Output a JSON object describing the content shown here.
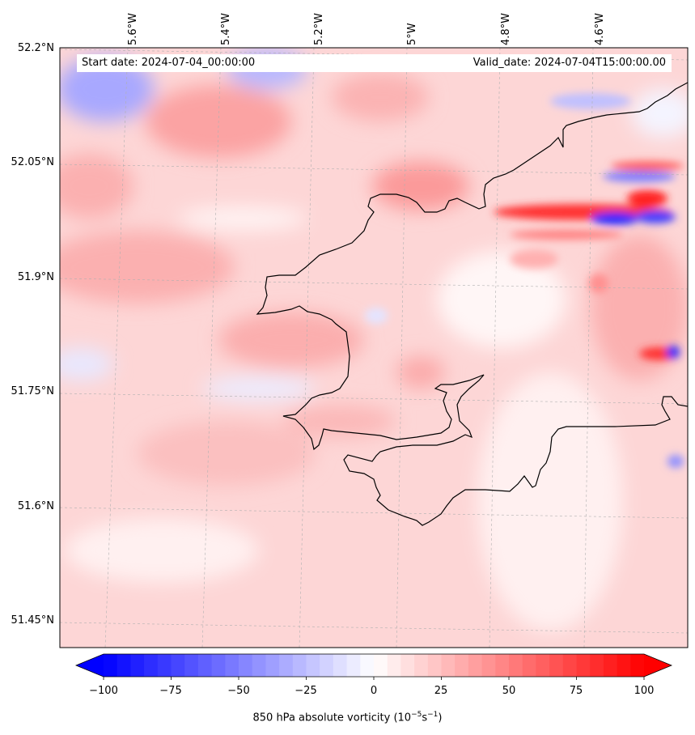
{
  "header": {
    "start_label": "Start date: 2024-07-04_00:00:00",
    "valid_label": "Valid_date: 2024-07-04T15:00:00.00"
  },
  "axes": {
    "lat_labels": [
      "52.2°N",
      "52.05°N",
      "51.9°N",
      "51.75°N",
      "51.6°N",
      "51.45°N"
    ],
    "lon_labels": [
      "5.6°W",
      "5.4°W",
      "5.2°W",
      "5°W",
      "4.8°W",
      "4.6°W"
    ]
  },
  "colorbar": {
    "title": "850 hPa absolute vorticity (10",
    "title_unit_exp1": "−5",
    "title_mid": "s",
    "title_unit_exp2": "−1",
    "title_end": ")",
    "ticks": [
      "−100",
      "−75",
      "−50",
      "−25",
      "0",
      "25",
      "50",
      "75",
      "100"
    ],
    "min": -100,
    "max": 100,
    "step": 5,
    "colormap": "bwr",
    "extend": "both"
  },
  "colors": {
    "coastline": "#000000",
    "gridline": "#b0b0b0",
    "background_field": "#fdd8d8"
  }
}
